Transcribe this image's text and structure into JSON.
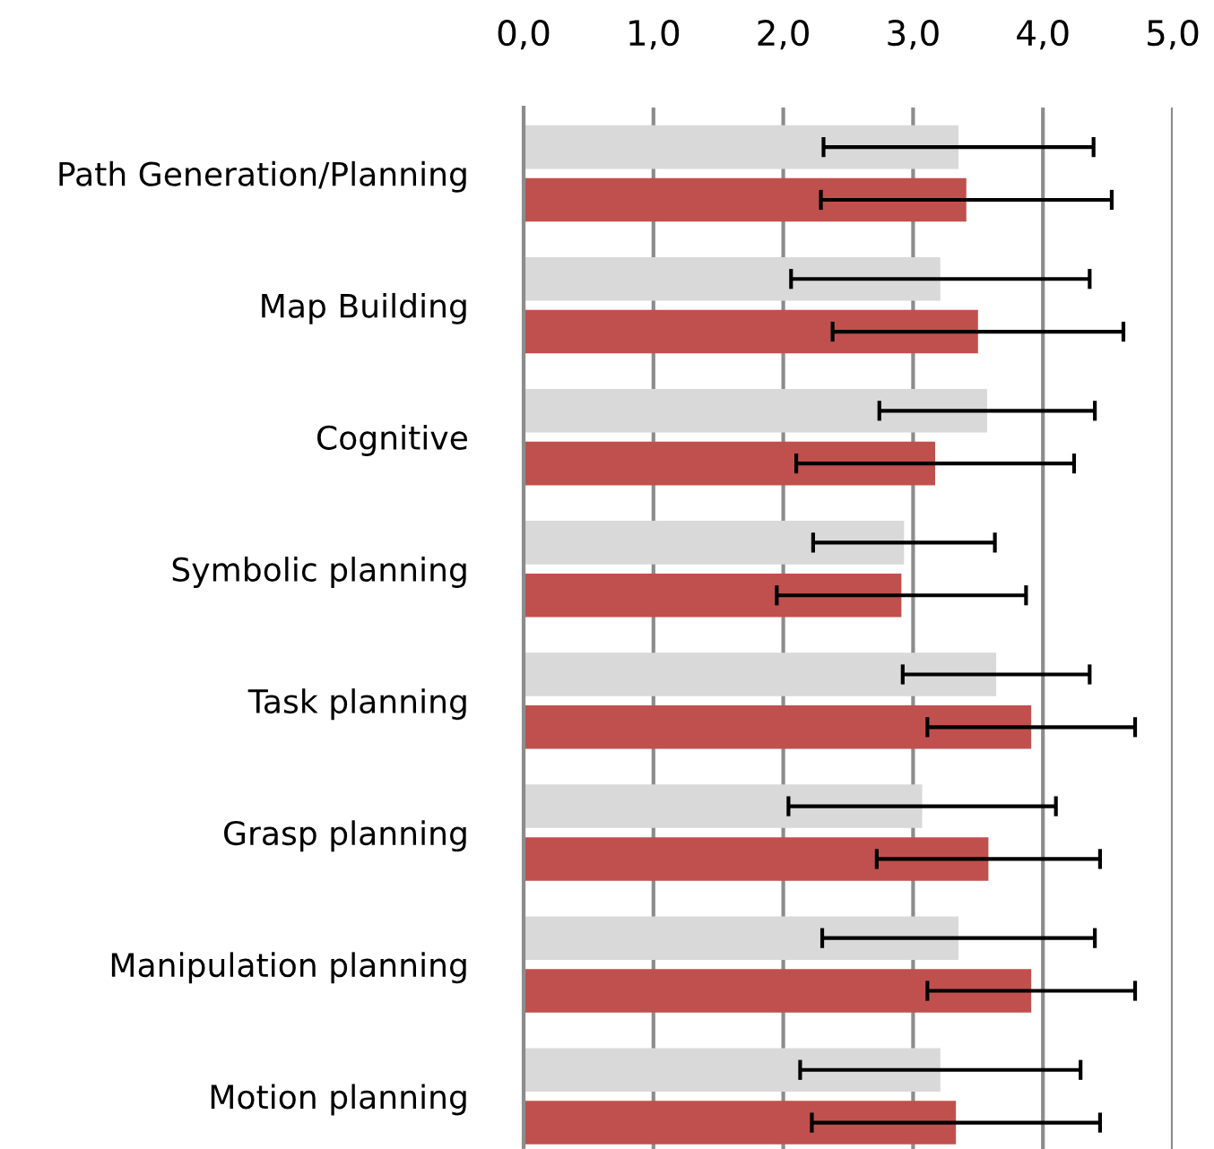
{
  "chart_data": {
    "type": "bar",
    "orientation": "horizontal",
    "categories": [
      "Path Generation/Planning",
      "Map Building",
      "Cognitive",
      "Symbolic planning",
      "Task planning",
      "Grasp planning",
      "Manipulation planning",
      "Motion planning"
    ],
    "series": [
      {
        "color": "#d9d9d9",
        "values": [
          3.35,
          3.21,
          3.57,
          2.93,
          3.64,
          3.07,
          3.35,
          3.21
        ],
        "errors": [
          1.04,
          1.15,
          0.83,
          0.7,
          0.72,
          1.03,
          1.05,
          1.08
        ]
      },
      {
        "color": "#c0504d",
        "values": [
          3.41,
          3.5,
          3.17,
          2.91,
          3.91,
          3.58,
          3.91,
          3.33
        ],
        "errors": [
          1.12,
          1.12,
          1.07,
          0.96,
          0.8,
          0.86,
          0.8,
          1.11
        ]
      }
    ],
    "xlim": [
      0,
      5
    ],
    "xticks": [
      {
        "value": 0,
        "label": "0,0"
      },
      {
        "value": 1,
        "label": "1,0"
      },
      {
        "value": 2,
        "label": "2,0"
      },
      {
        "value": 3,
        "label": "3,0"
      },
      {
        "value": 4,
        "label": "4,0"
      },
      {
        "value": 5,
        "label": "5,0"
      }
    ],
    "grid": "x",
    "legend": false
  }
}
